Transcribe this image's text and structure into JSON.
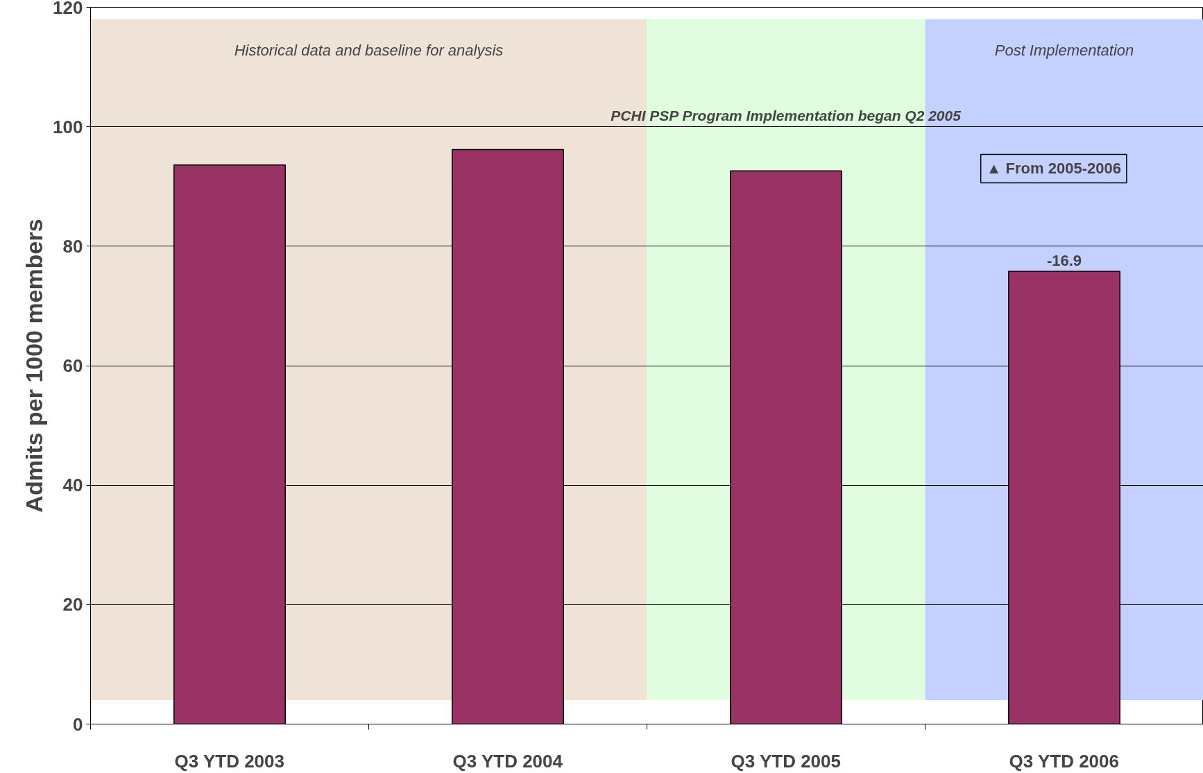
{
  "chart_data": {
    "type": "bar",
    "ylabel": "Admits per 1000 members",
    "categories": [
      "Q3 YTD 2003",
      "Q3 YTD 2004",
      "Q3 YTD 2005",
      "Q3 YTD 2006"
    ],
    "values": [
      93.6,
      96.2,
      92.6,
      75.8
    ],
    "color": "#993366",
    "ylim": [
      0,
      120
    ],
    "yticks": [
      0,
      20,
      40,
      60,
      80,
      100,
      120
    ],
    "grid": "y",
    "bands": [
      {
        "axis": "x",
        "from": "Q3 YTD 2003",
        "to": "Q3 YTD 2004",
        "label": "Historical data and baseline for analysis",
        "color": "#efe3d8"
      },
      {
        "axis": "x",
        "from": "Q3 YTD 2005",
        "to": "Q3 YTD 2005",
        "label": "PCHI PSP Program Implementation began Q2 2005",
        "color": "#e0fde0"
      },
      {
        "axis": "x",
        "from": "Q3 YTD 2006",
        "to": "Q3 YTD 2006",
        "label": "Post Implementation",
        "color": "#c4d0ff"
      }
    ],
    "annotations": [
      "▲ From 2005-2006",
      {
        "text": "-16.9",
        "x": "Q3 YTD 2006",
        "y": 75.8
      }
    ]
  }
}
